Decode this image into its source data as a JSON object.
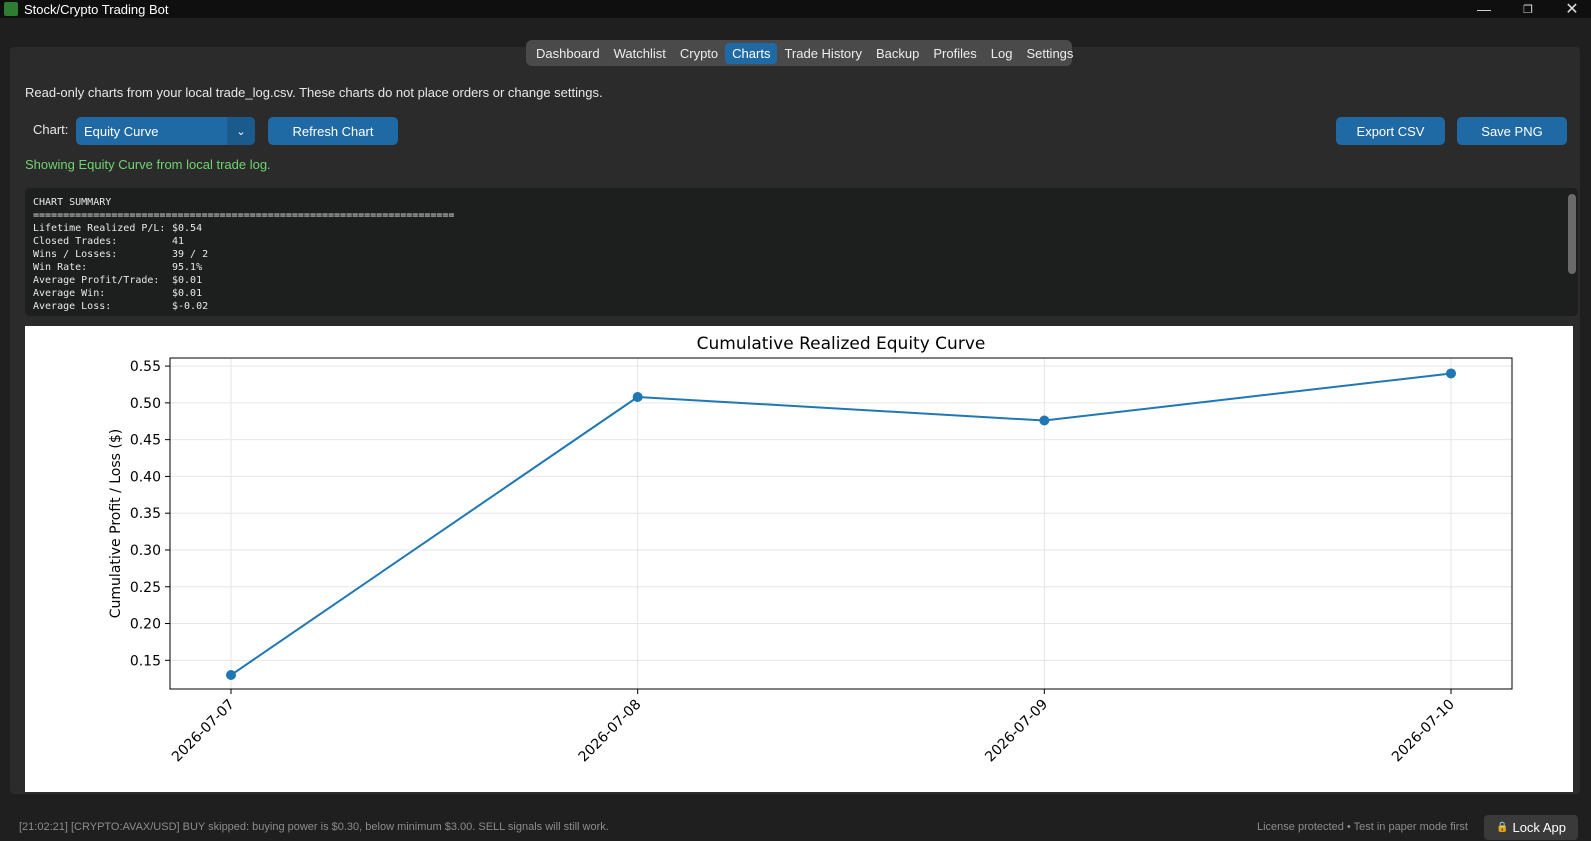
{
  "window": {
    "title": "Stock/Crypto Trading Bot"
  },
  "tabs": [
    {
      "label": "Dashboard",
      "active": false
    },
    {
      "label": "Watchlist",
      "active": false
    },
    {
      "label": "Crypto",
      "active": false
    },
    {
      "label": "Charts",
      "active": true
    },
    {
      "label": "Trade History",
      "active": false
    },
    {
      "label": "Backup",
      "active": false
    },
    {
      "label": "Profiles",
      "active": false
    },
    {
      "label": "Log",
      "active": false
    },
    {
      "label": "Settings",
      "active": false
    }
  ],
  "charts_page": {
    "info": "Read-only charts from your local trade_log.csv. These charts do not place orders or change settings.",
    "chart_label": "Chart:",
    "chart_select_value": "Equity Curve",
    "refresh_label": "Refresh Chart",
    "export_label": "Export CSV",
    "save_label": "Save PNG",
    "status": "Showing Equity Curve from local trade log."
  },
  "summary": {
    "title": "CHART SUMMARY",
    "separator": "======================================================================",
    "rows": [
      {
        "label": "Lifetime Realized P/L:",
        "value": "$0.54"
      },
      {
        "label": "Closed Trades:",
        "value": "41"
      },
      {
        "label": "Wins / Losses:",
        "value": "39 / 2"
      },
      {
        "label": "Win Rate:",
        "value": "95.1%"
      },
      {
        "label": "Average Profit/Trade:",
        "value": "$0.01"
      },
      {
        "label": "Average Win:",
        "value": "$0.01"
      },
      {
        "label": "Average Loss:",
        "value": "$-0.02"
      }
    ]
  },
  "chart_data": {
    "type": "line",
    "title": "Cumulative Realized Equity Curve",
    "xlabel": "",
    "ylabel": "Cumulative Profit / Loss ($)",
    "x": [
      "2026-07-07",
      "2026-07-08",
      "2026-07-09",
      "2026-07-10"
    ],
    "series": [
      {
        "values": [
          0.13,
          0.508,
          0.476,
          0.54
        ],
        "color": "#1f77b4"
      }
    ],
    "ylim": [
      0.111,
      0.561
    ],
    "yticks": [
      "0.15",
      "0.20",
      "0.25",
      "0.30",
      "0.35",
      "0.40",
      "0.45",
      "0.50",
      "0.55"
    ],
    "grid": true
  },
  "footer": {
    "log": "[21:02:21] [CRYPTO:AVAX/USD] BUY skipped: buying power is $0.30, below minimum $3.00. SELL signals will still work.",
    "license": "License protected • Test in paper mode first",
    "lock_label": "Lock App"
  }
}
